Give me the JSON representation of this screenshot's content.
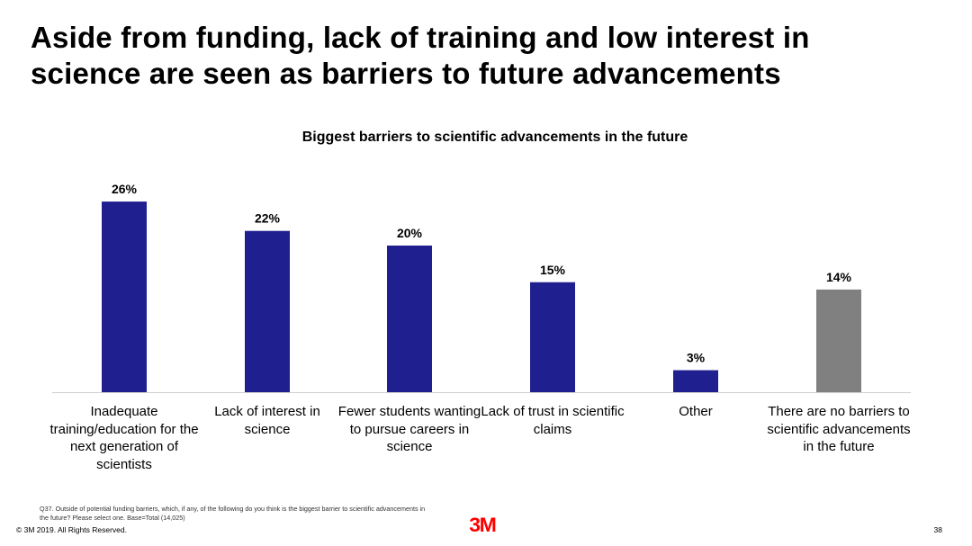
{
  "slide": {
    "title": "Aside from funding, lack of training and low interest in\nscience are seen as barriers to future advancements",
    "footnote": "Q37. Outside of potential funding barriers, which, if any, of the following do you think is the biggest barrier to scientific advancements in the future? Please select one. Base=Total (14,025)",
    "copyright": "© 3M 2019.   All Rights Reserved.",
    "logo": "3M",
    "page_number": "38"
  },
  "chart_data": {
    "type": "bar",
    "title": "Biggest barriers to scientific advancements in the future",
    "categories": [
      "Inadequate training/education for the next generation of scientists",
      "Lack of interest in science",
      "Fewer students wanting to pursue careers in science",
      "Lack of trust in scientific claims",
      "Other",
      "There are no barriers to scientific advancements in the future"
    ],
    "values": [
      26,
      22,
      20,
      15,
      3,
      14
    ],
    "value_labels": [
      "26%",
      "22%",
      "20%",
      "15%",
      "3%",
      "14%"
    ],
    "unit": "%",
    "colors": [
      "#1f1f8f",
      "#1f1f8f",
      "#1f1f8f",
      "#1f1f8f",
      "#1f1f8f",
      "#808080"
    ],
    "grid": false,
    "legend": "none"
  }
}
